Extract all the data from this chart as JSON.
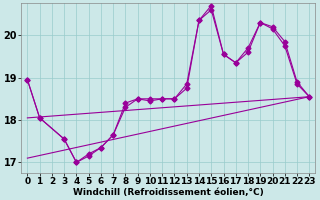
{
  "xlabel": "Windchill (Refroidissement éolien,°C)",
  "bg_color": "#cce8e8",
  "line_color": "#990099",
  "xlim": [
    -0.5,
    23.5
  ],
  "ylim": [
    16.75,
    20.75
  ],
  "xticks": [
    0,
    1,
    2,
    3,
    4,
    5,
    6,
    7,
    8,
    9,
    10,
    11,
    12,
    13,
    14,
    15,
    16,
    17,
    18,
    19,
    20,
    21,
    22,
    23
  ],
  "yticks": [
    17,
    18,
    19,
    20
  ],
  "series1_x": [
    0,
    1,
    3,
    4,
    5,
    6,
    7,
    8,
    9,
    10,
    11,
    12,
    13,
    14,
    15,
    16,
    17,
    18,
    19,
    20,
    21,
    22,
    23
  ],
  "series1_y": [
    18.95,
    18.05,
    17.55,
    17.0,
    17.2,
    17.35,
    17.65,
    18.4,
    18.5,
    18.45,
    18.5,
    18.5,
    18.75,
    20.35,
    20.6,
    19.55,
    19.35,
    19.6,
    20.3,
    20.15,
    19.75,
    18.85,
    18.55
  ],
  "series2_x": [
    0,
    1,
    3,
    4,
    5,
    6,
    7,
    8,
    9,
    10,
    11,
    12,
    13,
    14,
    15,
    16,
    17,
    18,
    19,
    20,
    21,
    22,
    23
  ],
  "series2_y": [
    18.95,
    18.05,
    17.55,
    17.0,
    17.15,
    17.35,
    17.65,
    18.3,
    18.5,
    18.5,
    18.5,
    18.5,
    18.85,
    20.35,
    20.7,
    19.55,
    19.35,
    19.7,
    20.3,
    20.2,
    19.85,
    18.9,
    18.55
  ],
  "line1_x": [
    0,
    23
  ],
  "line1_y": [
    18.05,
    18.55
  ],
  "line2_x": [
    0,
    23
  ],
  "line2_y": [
    17.1,
    18.55
  ],
  "grid_color": "#99cccc",
  "marker": "D",
  "marker_size": 2.5,
  "line_width": 0.8,
  "xlabel_fontsize": 6.5,
  "tick_fontsize": 6.5
}
